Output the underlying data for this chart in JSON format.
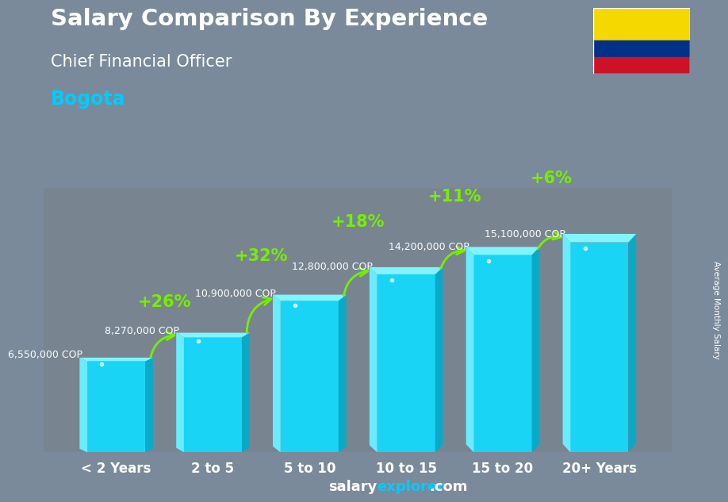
{
  "title_line1": "Salary Comparison By Experience",
  "title_line2": "Chief Financial Officer",
  "title_line3": "Bogota",
  "categories": [
    "< 2 Years",
    "2 to 5",
    "5 to 10",
    "10 to 15",
    "15 to 20",
    "20+ Years"
  ],
  "values": [
    6550000,
    8270000,
    10900000,
    12800000,
    14200000,
    15100000
  ],
  "value_labels": [
    "6,550,000 COP",
    "8,270,000 COP",
    "10,900,000 COP",
    "12,800,000 COP",
    "14,200,000 COP",
    "15,100,000 COP"
  ],
  "pct_labels": [
    "+26%",
    "+32%",
    "+18%",
    "+11%",
    "+6%"
  ],
  "bar_color_main": "#1ad4f5",
  "bar_color_left": "#5de8ff",
  "bar_color_right": "#0aadcc",
  "bar_color_top": "#7af0ff",
  "background_color": "#7a8a9a",
  "overlay_color": "#667788",
  "text_color_white": "#ffffff",
  "text_color_cyan": "#00ccff",
  "text_color_green": "#77ee00",
  "footer_salary_color": "#ffffff",
  "footer_explorer_color": "#00ccff",
  "footer_text": "salaryexplorer.com",
  "ylabel": "Average Monthly Salary",
  "ylim": [
    0,
    19000000
  ],
  "bar_width": 0.6,
  "flag_yellow": "#f5d800",
  "flag_blue": "#003087",
  "flag_red": "#ce1126"
}
